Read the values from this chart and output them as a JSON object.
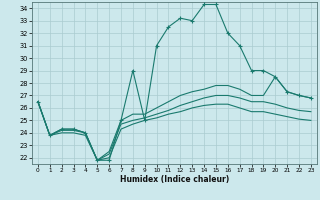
{
  "xlabel": "Humidex (Indice chaleur)",
  "bg_color": "#cce8ec",
  "grid_color": "#aaccd0",
  "line_color": "#1a7a6e",
  "x_ticks": [
    0,
    1,
    2,
    3,
    4,
    5,
    6,
    7,
    8,
    9,
    10,
    11,
    12,
    13,
    14,
    15,
    16,
    17,
    18,
    19,
    20,
    21,
    22,
    23
  ],
  "y_ticks": [
    22,
    23,
    24,
    25,
    26,
    27,
    28,
    29,
    30,
    31,
    32,
    33,
    34
  ],
  "ylim": [
    21.5,
    34.5
  ],
  "xlim": [
    -0.5,
    23.5
  ],
  "main_line": [
    26.5,
    23.8,
    24.3,
    24.3,
    24.0,
    21.8,
    21.8,
    25.0,
    29.0,
    25.0,
    31.0,
    32.5,
    33.2,
    33.0,
    34.3,
    34.3,
    32.0,
    31.0,
    29.0,
    29.0,
    28.5,
    27.3,
    27.0,
    26.8
  ],
  "line2": [
    26.5,
    23.8,
    24.3,
    24.3,
    24.0,
    21.8,
    22.5,
    25.0,
    25.5,
    25.5,
    26.0,
    26.5,
    27.0,
    27.3,
    27.5,
    27.8,
    27.8,
    27.5,
    27.0,
    27.0,
    28.5,
    27.3,
    27.0,
    26.8
  ],
  "line3": [
    26.5,
    23.8,
    24.2,
    24.2,
    24.0,
    21.8,
    22.3,
    24.7,
    25.0,
    25.2,
    25.5,
    25.8,
    26.2,
    26.5,
    26.8,
    27.0,
    27.0,
    26.8,
    26.5,
    26.5,
    26.3,
    26.0,
    25.8,
    25.7
  ],
  "line4": [
    26.5,
    23.8,
    24.0,
    24.0,
    23.8,
    21.8,
    22.0,
    24.3,
    24.7,
    25.0,
    25.2,
    25.5,
    25.7,
    26.0,
    26.2,
    26.3,
    26.3,
    26.0,
    25.7,
    25.7,
    25.5,
    25.3,
    25.1,
    25.0
  ]
}
